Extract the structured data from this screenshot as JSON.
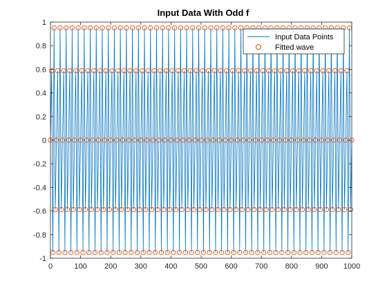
{
  "chart_data": {
    "type": "line",
    "title": "Input Data With Odd f",
    "xlabel": "",
    "ylabel": "",
    "xlim": [
      0,
      1000
    ],
    "ylim": [
      -1,
      1
    ],
    "xticks": [
      0,
      100,
      200,
      300,
      400,
      500,
      600,
      700,
      800,
      900,
      1000
    ],
    "yticks": [
      -1,
      -0.8,
      -0.6,
      -0.4,
      -0.2,
      0,
      0.2,
      0.4,
      0.6,
      0.8,
      1
    ],
    "xtick_labels": [
      "0",
      "100",
      "200",
      "300",
      "400",
      "500",
      "600",
      "700",
      "800",
      "900",
      "1000"
    ],
    "ytick_labels": [
      "-1",
      "-0.8",
      "-0.6",
      "-0.4",
      "-0.2",
      "0",
      "0.2",
      "0.4",
      "0.6",
      "0.8",
      "1"
    ],
    "grid": false,
    "legend_position": "top-right",
    "series": [
      {
        "name": "Input Data Points",
        "style": "line",
        "color": "#0072BD",
        "function": "sin",
        "frequency_cycles_per_unit": 0.1,
        "x_range": [
          0,
          1000
        ],
        "sample_step": 4
      },
      {
        "name": "Fitted wave",
        "style": "circle-markers",
        "color": "#D95319",
        "function": "sin",
        "frequency_cycles_per_unit": 0.1,
        "x_range": [
          0,
          1000
        ],
        "sample_step": 4
      }
    ]
  }
}
